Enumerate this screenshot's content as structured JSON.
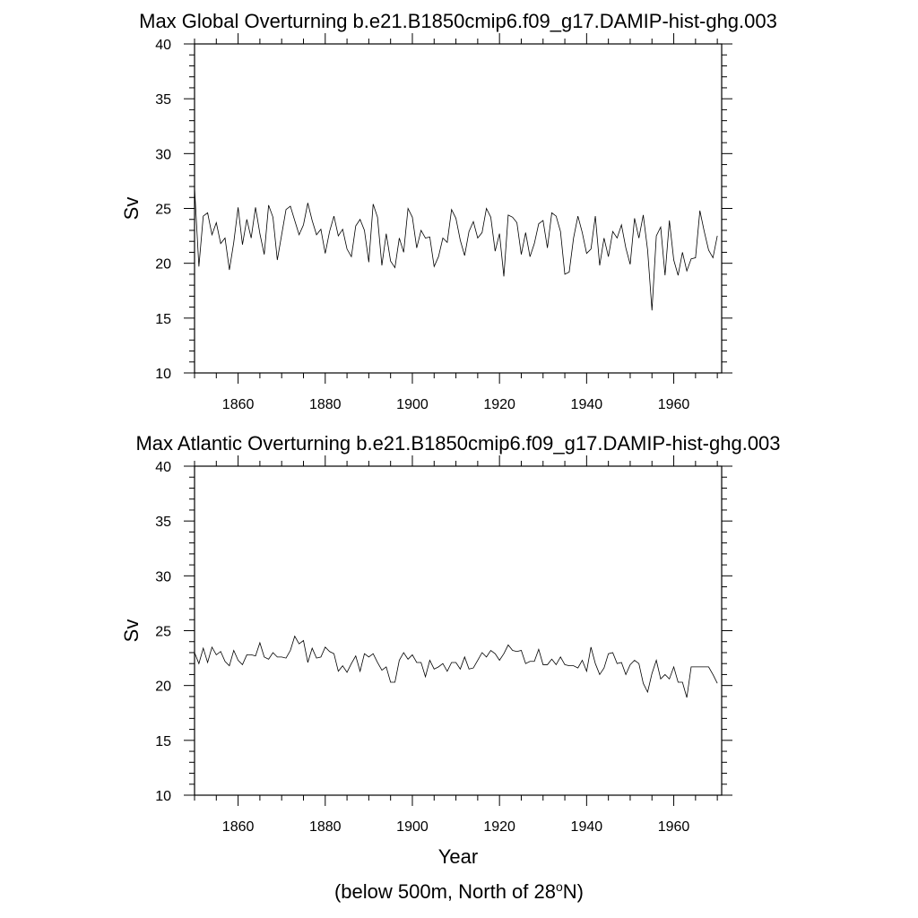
{
  "chart_data": [
    {
      "type": "line",
      "title": "Max Global Overturning b.e21.B1850cmip6.f09_g17.DAMIP-hist-ghg.003",
      "xlabel": "",
      "ylabel": "Sv",
      "xlim": [
        1850,
        1971
      ],
      "ylim": [
        10,
        40
      ],
      "x_ticks": [
        1860,
        1880,
        1900,
        1920,
        1940,
        1960
      ],
      "y_ticks": [
        10,
        15,
        20,
        25,
        30,
        35,
        40
      ],
      "x_start": 1850,
      "x_step": 1,
      "series": [
        {
          "values": [
            26.9,
            19.7,
            24.3,
            24.6,
            22.6,
            23.7,
            21.8,
            22.3,
            19.4,
            21.9,
            25.1,
            21.7,
            24.0,
            22.3,
            25.1,
            22.7,
            20.8,
            25.3,
            24.2,
            20.3,
            22.6,
            24.9,
            25.2,
            23.9,
            22.6,
            23.5,
            25.5,
            23.9,
            22.6,
            23.1,
            20.9,
            22.9,
            24.3,
            22.5,
            23.1,
            21.3,
            20.6,
            23.4,
            24.0,
            23.0,
            20.1,
            25.4,
            24.2,
            19.8,
            22.7,
            20.2,
            19.6,
            22.3,
            21.0,
            25.0,
            24.2,
            21.4,
            23.0,
            22.3,
            22.4,
            19.7,
            20.6,
            22.3,
            21.9,
            24.9,
            24.1,
            22.1,
            20.7,
            22.9,
            23.8,
            22.3,
            22.8,
            25.0,
            24.2,
            21.1,
            22.7,
            18.8,
            24.4,
            24.2,
            23.7,
            20.8,
            22.8,
            20.6,
            21.8,
            23.6,
            23.9,
            21.4,
            24.6,
            24.3,
            22.9,
            19.0,
            19.2,
            22.3,
            24.3,
            22.8,
            20.9,
            21.3,
            24.3,
            19.8,
            22.3,
            20.6,
            22.9,
            22.3,
            23.5,
            21.4,
            19.9,
            24.1,
            22.3,
            24.4,
            21.2,
            15.7,
            22.5,
            23.3,
            18.9,
            23.9,
            20.3,
            18.9,
            21.0,
            19.3,
            20.4,
            20.5,
            24.8,
            22.9,
            21.2,
            20.5,
            22.5
          ]
        }
      ],
      "grid": false
    },
    {
      "type": "line",
      "title": "Max Atlantic Overturning b.e21.B1850cmip6.f09_g17.DAMIP-hist-ghg.003",
      "xlabel": "Year",
      "ylabel": "Sv",
      "xlim": [
        1850,
        1971
      ],
      "ylim": [
        10,
        40
      ],
      "x_ticks": [
        1860,
        1880,
        1900,
        1920,
        1940,
        1960
      ],
      "y_ticks": [
        10,
        15,
        20,
        25,
        30,
        35,
        40
      ],
      "x_start": 1850,
      "x_step": 1,
      "series": [
        {
          "values": [
            23.0,
            22.0,
            23.4,
            22.1,
            23.5,
            22.8,
            23.1,
            22.2,
            21.8,
            23.2,
            22.3,
            21.9,
            22.8,
            22.8,
            22.7,
            23.9,
            22.6,
            22.4,
            23.0,
            22.6,
            22.6,
            22.5,
            23.2,
            24.5,
            23.8,
            24.1,
            22.1,
            23.4,
            22.5,
            22.6,
            23.5,
            23.1,
            22.9,
            21.3,
            21.8,
            21.2,
            22.0,
            22.7,
            21.3,
            22.9,
            22.6,
            22.9,
            22.1,
            21.4,
            21.7,
            20.3,
            20.3,
            22.3,
            23.0,
            22.4,
            22.8,
            22.1,
            22.1,
            20.8,
            22.3,
            21.5,
            21.7,
            22.0,
            21.3,
            22.1,
            22.1,
            21.5,
            22.6,
            21.5,
            21.6,
            22.3,
            23.0,
            22.6,
            23.2,
            22.9,
            22.3,
            22.9,
            23.7,
            23.2,
            23.1,
            23.2,
            22.0,
            22.2,
            22.2,
            23.3,
            21.9,
            21.9,
            22.4,
            21.9,
            22.6,
            21.9,
            21.8,
            21.8,
            21.6,
            22.3,
            21.3,
            23.5,
            22.0,
            21.0,
            21.6,
            22.9,
            23.0,
            22.0,
            22.1,
            21.0,
            21.9,
            22.3,
            22.0,
            20.2,
            19.4,
            21.1,
            22.3,
            20.6,
            21.0,
            20.6,
            21.7,
            20.3,
            20.3,
            18.9,
            21.7,
            21.7,
            21.7,
            21.7,
            21.7,
            21.0,
            20.2
          ]
        }
      ],
      "grid": false
    }
  ],
  "footnote": {
    "before": "(below 500m, North of 28",
    "sup": "o",
    "after": "N)"
  }
}
